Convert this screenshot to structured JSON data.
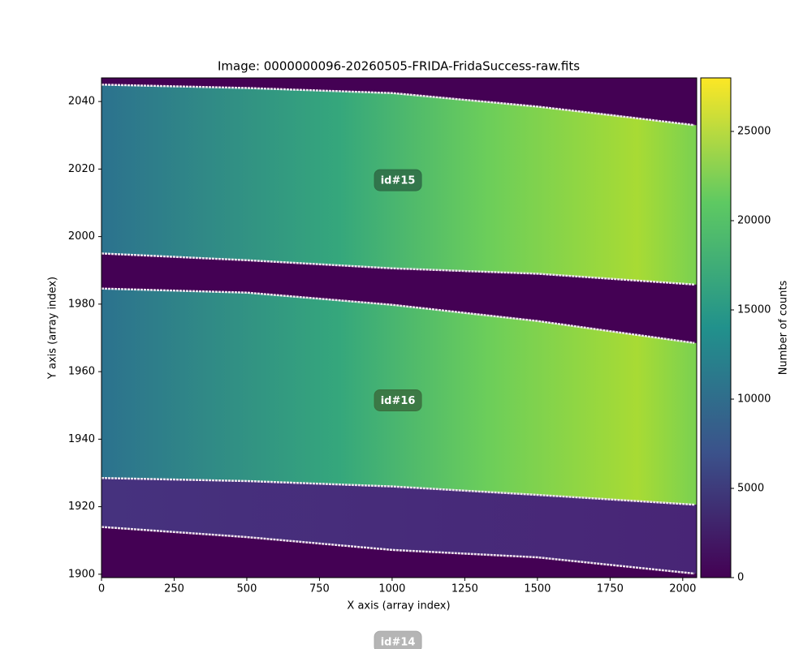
{
  "chart_data": {
    "type": "image",
    "title": "Image: 0000000096-20260505-FRIDA-FridaSuccess-raw.fits",
    "xlabel": "X axis (array index)",
    "ylabel": "Y axis (array index)",
    "xlim": [
      0,
      2048
    ],
    "ylim": [
      1899,
      2047
    ],
    "xticks": [
      0,
      250,
      500,
      750,
      1000,
      1250,
      1500,
      1750,
      2000
    ],
    "yticks": [
      1900,
      1920,
      1940,
      1960,
      1980,
      2000,
      2020,
      2040
    ],
    "colorbar": {
      "label": "Number of counts",
      "lim": [
        0,
        28000
      ],
      "ticks": [
        0,
        5000,
        10000,
        15000,
        20000,
        25000
      ]
    },
    "boundaries": [
      {
        "x": [
          0,
          500,
          1000,
          1250,
          1500,
          1750,
          2040
        ],
        "y": [
          2045,
          2044,
          2042.5,
          2040.5,
          2038.5,
          2036,
          2033
        ]
      },
      {
        "x": [
          0,
          500,
          1000,
          1500,
          2040
        ],
        "y": [
          1995,
          1993,
          1990.6,
          1989,
          1985.8
        ]
      },
      {
        "x": [
          0,
          500,
          1000,
          1500,
          2040
        ],
        "y": [
          1984.6,
          1983.4,
          1979.8,
          1975,
          1968.5
        ]
      },
      {
        "x": [
          0,
          500,
          1000,
          1500,
          2040
        ],
        "y": [
          1928.5,
          1927.6,
          1926,
          1923.5,
          1920.6
        ]
      },
      {
        "x": [
          0,
          500,
          1000,
          1500,
          2040
        ],
        "y": [
          1914,
          1911,
          1907.2,
          1905,
          1900.2
        ]
      }
    ],
    "annotations": [
      {
        "text": "id#15",
        "x": 1020,
        "y": 2016.7,
        "color": "#2e6b45"
      },
      {
        "text": "id#16",
        "x": 1020,
        "y": 1951.5,
        "color": "#3a6e3e"
      },
      {
        "text": "id#14",
        "x": 1020,
        "y": 1880,
        "color": "#a8a8a8"
      }
    ]
  }
}
